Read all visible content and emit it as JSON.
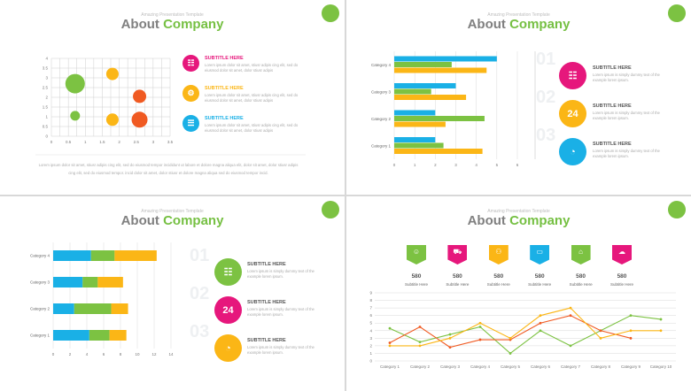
{
  "header": {
    "pre": "Amazing Presentation Template",
    "title_a": "About",
    "title_b": "Company"
  },
  "slide1": {
    "chart_data": {
      "type": "scatter",
      "xlabels": [
        "0",
        "0.5",
        "1",
        "1.5",
        "2",
        "2.5",
        "3",
        "3.5"
      ],
      "ylabels": [
        "0",
        "0.5",
        "1",
        "1.5",
        "2",
        "2.5",
        "3",
        "3.5",
        "4"
      ],
      "xlim": [
        0,
        3.5
      ],
      "ylim": [
        0,
        4
      ],
      "points": [
        {
          "x": 0.7,
          "y": 2.7,
          "color": "#7cc242"
        },
        {
          "x": 0.7,
          "y": 1.05,
          "color": "#7cc242"
        },
        {
          "x": 1.8,
          "y": 3.2,
          "color": "#fbb616"
        },
        {
          "x": 1.8,
          "y": 0.85,
          "color": "#fbb616"
        },
        {
          "x": 2.6,
          "y": 2.05,
          "color": "#f05a22"
        },
        {
          "x": 2.6,
          "y": 0.85,
          "color": "#f05a22"
        }
      ]
    },
    "items": [
      {
        "subtitle": "SUBTITLE HERE",
        "color": "#e6177c",
        "icon": "chart-icon",
        "desc": "Lorem ipsum dolor sit amet, stiusr adipis cing elit, sed do eiusmod dolor sit amet, dolor stiusr adipis"
      },
      {
        "subtitle": "SUBTITLE HERE",
        "color": "#fbb616",
        "icon": "settings-icon",
        "desc": "Lorem ipsum dolor sit amet, stiusr adipis cing elit, sed do eiusmod dolor sit amet, dolor stiusr adipis"
      },
      {
        "subtitle": "SUBTITLE HERE",
        "color": "#1ab0e6",
        "icon": "clipboard-icon",
        "desc": "Lorem ipsum dolor sit amet, stiusr adipis cing elit, sed do eiusmod dolor sit amet, dolor stiusr adipis"
      }
    ],
    "para": "Lorem ipsum dolor sit amet, stiusr adipis cing elit, sed do eiusmod tempor incididunt ut labore et dolore magna aliqua elit, dolor sit amet, dolor stiusr adipis cing elit, sed do eiusmod tempor. incid dolor sit amet, dolor stiusr et dolore magna aliqua sed do eiusmod tempor incid."
  },
  "slide2": {
    "chart_data": {
      "type": "bar",
      "orientation": "horizontal",
      "categories": [
        "Category 1",
        "Category 2",
        "Category 3",
        "Category 4"
      ],
      "series": [
        {
          "color": "#fbb616",
          "values": [
            4.3,
            2.5,
            3.5,
            4.5
          ]
        },
        {
          "color": "#7cc242",
          "values": [
            2.4,
            4.4,
            1.8,
            2.8
          ]
        },
        {
          "color": "#1ab0e6",
          "values": [
            2.0,
            2.0,
            3.0,
            5.0
          ]
        }
      ],
      "xlabels": [
        "0",
        "1",
        "2",
        "3",
        "4",
        "5",
        "6"
      ],
      "xlim": [
        0,
        6
      ]
    },
    "items": [
      {
        "num": "01",
        "subtitle": "SUBTITLE HERE",
        "color": "#e6177c",
        "icon": "chart-icon",
        "desc": "Lorem ipsum is simply dummy text of the example lorem ipsum."
      },
      {
        "num": "02",
        "subtitle": "SUBTITLE HERE",
        "color": "#fbb616",
        "icon": "24-hours-icon",
        "desc": "Lorem ipsum is simply dummy text of the example lorem ipsum."
      },
      {
        "num": "03",
        "subtitle": "SUBTITLE HERE",
        "color": "#1ab0e6",
        "icon": "pie-icon",
        "desc": "Lorem ipsum is simply dummy text of the example lorem ipsum."
      }
    ]
  },
  "slide3": {
    "chart_data": {
      "type": "bar",
      "orientation": "horizontal",
      "stacked": true,
      "categories": [
        "Category 1",
        "Category 2",
        "Category 3",
        "Category 4"
      ],
      "series": [
        {
          "color": "#1ab0e6",
          "values": [
            4.3,
            2.5,
            3.5,
            4.5
          ]
        },
        {
          "color": "#7cc242",
          "values": [
            2.4,
            4.4,
            1.8,
            2.8
          ]
        },
        {
          "color": "#fbb616",
          "values": [
            2.0,
            2.0,
            3.0,
            5.0
          ]
        }
      ],
      "xlabels": [
        "0",
        "2",
        "4",
        "6",
        "8",
        "10",
        "12",
        "14"
      ],
      "xlim": [
        0,
        14
      ]
    },
    "items": [
      {
        "num": "01",
        "subtitle": "SUBTITLE HERE",
        "color": "#7cc242",
        "icon": "chart-icon",
        "desc": "Lorem ipsum is simply dummy text of the example lorem ipsum."
      },
      {
        "num": "02",
        "subtitle": "SUBTITLE HERE",
        "color": "#e6177c",
        "icon": "24-hours-icon",
        "desc": "Lorem ipsum is simply dummy text of the example lorem ipsum."
      },
      {
        "num": "03",
        "subtitle": "SUBTITLE HERE",
        "color": "#fbb616",
        "icon": "pie-icon",
        "desc": "Lorem ipsum is simply dummy text of the example lorem ipsum."
      }
    ]
  },
  "slide4": {
    "tags": [
      {
        "value": "580",
        "label": "Subtitle Here",
        "color": "#7cc242",
        "icon": "people-icon"
      },
      {
        "value": "580",
        "label": "Subtitle Here",
        "color": "#e6177c",
        "icon": "cart-icon"
      },
      {
        "value": "580",
        "label": "Subtitle Here",
        "color": "#fbb616",
        "icon": "user-icon"
      },
      {
        "value": "580",
        "label": "Subtitle Here",
        "color": "#1ab0e6",
        "icon": "monitor-icon"
      },
      {
        "value": "580",
        "label": "Subtitle Here",
        "color": "#7cc242",
        "icon": "basket-icon"
      },
      {
        "value": "580",
        "label": "Subtitle Here",
        "color": "#e6177c",
        "icon": "cloud-icon"
      }
    ],
    "chart_data": {
      "type": "line",
      "categories": [
        "Category 1",
        "Category 2",
        "Category 3",
        "Category 4",
        "Category 5",
        "Category 6",
        "Category 7",
        "Category 8",
        "Category 9",
        "Category 10"
      ],
      "ylabels": [
        "0",
        "1",
        "2",
        "3",
        "4",
        "5",
        "6",
        "7",
        "8",
        "9"
      ],
      "ylim": [
        0,
        9
      ],
      "series": [
        {
          "color": "#7cc242",
          "values": [
            4.3,
            2.5,
            3.5,
            4.5,
            1.0,
            4.0,
            2.0,
            4.0,
            6.0,
            5.5
          ]
        },
        {
          "color": "#f05a22",
          "values": [
            2.4,
            4.5,
            1.8,
            2.8,
            2.8,
            5.0,
            6.0,
            4.0,
            3.0,
            null
          ]
        },
        {
          "color": "#fbb616",
          "values": [
            2.0,
            2.0,
            3.0,
            5.0,
            3.0,
            6.0,
            7.0,
            3.0,
            4.0,
            4.0
          ]
        }
      ]
    }
  }
}
